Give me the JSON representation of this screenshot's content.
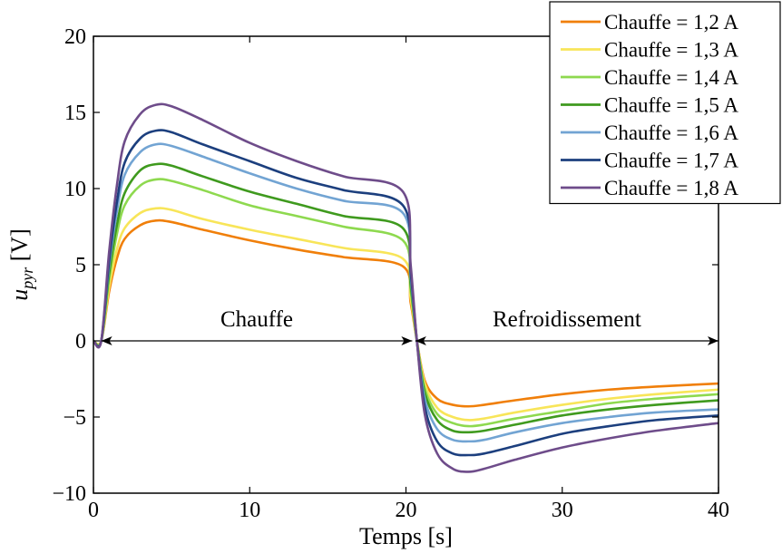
{
  "chart_data": {
    "type": "line",
    "title": "",
    "xlabel": "Temps [s]",
    "ylabel_main": "u",
    "ylabel_sub": "pyr",
    "ylabel_unit": " [V]",
    "xlim": [
      0,
      40
    ],
    "ylim": [
      -10,
      20
    ],
    "xticks": [
      0,
      10,
      20,
      30,
      40
    ],
    "yticks": [
      -10,
      -5,
      0,
      5,
      10,
      15,
      20
    ],
    "xtick_labels": [
      "0",
      "10",
      "20",
      "30",
      "40"
    ],
    "ytick_labels": [
      "−10",
      "−5",
      "0",
      "5",
      "10",
      "15",
      "20"
    ],
    "grid": false,
    "legend_position": "top-right",
    "annotations": [
      {
        "text": "Chauffe",
        "x_start": 0.5,
        "x_end": 20.4,
        "y": 0
      },
      {
        "text": "Refroidissement",
        "x_start": 20.6,
        "x_end": 40,
        "y": 0
      }
    ],
    "x": [
      0,
      0.5,
      1,
      1.5,
      2,
      3,
      4,
      5,
      7,
      10,
      13,
      16,
      19.8,
      20.3,
      20.7,
      21.2,
      22,
      23,
      24,
      25,
      27,
      30,
      33,
      36,
      40
    ],
    "series": [
      {
        "name": "Chauffe = 1,2 A",
        "color": "#f07f0a",
        "values": [
          0,
          0,
          3.2,
          5.4,
          6.7,
          7.6,
          7.9,
          7.8,
          7.3,
          6.6,
          6.0,
          5.5,
          4.9,
          2.5,
          0,
          -2.6,
          -3.8,
          -4.2,
          -4.3,
          -4.2,
          -3.9,
          -3.5,
          -3.2,
          -3.0,
          -2.8
        ]
      },
      {
        "name": "Chauffe = 1,3 A",
        "color": "#f8e559",
        "values": [
          0,
          0,
          3.5,
          6.0,
          7.4,
          8.4,
          8.7,
          8.6,
          8.0,
          7.3,
          6.7,
          6.1,
          5.4,
          2.8,
          0,
          -2.8,
          -4.4,
          -5.0,
          -5.2,
          -5.1,
          -4.7,
          -4.2,
          -3.8,
          -3.5,
          -3.2
        ]
      },
      {
        "name": "Chauffe = 1,4 A",
        "color": "#8ed94f",
        "values": [
          0,
          0,
          4.0,
          7.0,
          8.9,
          10.2,
          10.6,
          10.5,
          9.9,
          8.9,
          8.2,
          7.5,
          6.6,
          3.3,
          0,
          -3.1,
          -4.8,
          -5.4,
          -5.6,
          -5.5,
          -5.1,
          -4.6,
          -4.1,
          -3.8,
          -3.5
        ]
      },
      {
        "name": "Chauffe = 1,5 A",
        "color": "#3f9a1e",
        "values": [
          0,
          0,
          4.4,
          7.6,
          9.7,
          11.2,
          11.6,
          11.5,
          10.8,
          9.8,
          9.0,
          8.2,
          7.4,
          3.7,
          0,
          -3.4,
          -5.2,
          -5.9,
          -6.0,
          -5.9,
          -5.5,
          -4.9,
          -4.5,
          -4.2,
          -3.9
        ]
      },
      {
        "name": "Chauffe = 1,6 A",
        "color": "#72a4d3",
        "values": [
          0,
          0,
          4.9,
          8.5,
          10.9,
          12.4,
          12.9,
          12.8,
          12.1,
          11.0,
          10.0,
          9.2,
          8.4,
          4.2,
          0,
          -3.8,
          -5.8,
          -6.5,
          -6.6,
          -6.5,
          -6.0,
          -5.4,
          -5.0,
          -4.7,
          -4.5
        ]
      },
      {
        "name": "Chauffe = 1,7 A",
        "color": "#1c3f7e",
        "values": [
          0,
          0,
          5.2,
          9.1,
          11.7,
          13.3,
          13.8,
          13.7,
          12.9,
          11.8,
          10.7,
          9.9,
          8.9,
          4.5,
          0,
          -4.3,
          -6.6,
          -7.4,
          -7.5,
          -7.4,
          -6.9,
          -6.1,
          -5.6,
          -5.2,
          -4.9
        ]
      },
      {
        "name": "Chauffe = 1,8 A",
        "color": "#6e4c8a",
        "values": [
          0,
          0,
          5.8,
          10.2,
          13.1,
          14.9,
          15.5,
          15.4,
          14.5,
          13.0,
          11.8,
          10.8,
          9.8,
          5.0,
          0,
          -4.8,
          -7.4,
          -8.4,
          -8.6,
          -8.4,
          -7.8,
          -7.0,
          -6.4,
          -5.9,
          -5.4
        ]
      }
    ]
  }
}
